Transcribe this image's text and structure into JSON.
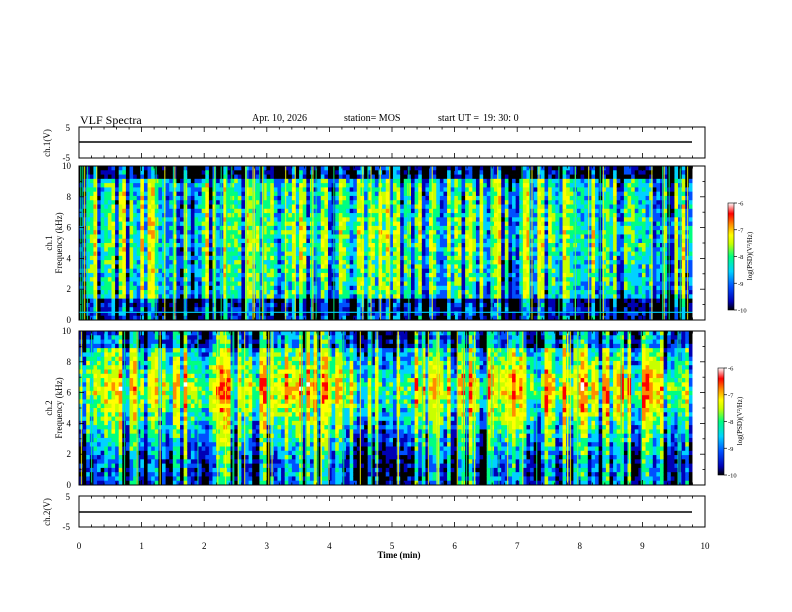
{
  "header": {
    "title": "VLF Spectra",
    "date": "Apr. 10, 2026",
    "station": "station= MOS",
    "start_label": "start UT =",
    "start_time": "19: 30: 0"
  },
  "chart_data": [
    {
      "type": "line",
      "panel": "waveform-1",
      "ylabel": "ch.1(V)",
      "ylim": [
        -5,
        5
      ],
      "yticks": [
        -5,
        5
      ],
      "xlim": [
        0,
        10
      ],
      "series": [
        {
          "values_description": "",
          "x": [
            0,
            9.8
          ],
          "y": [
            0,
            0
          ]
        }
      ]
    },
    {
      "type": "heatmap",
      "panel": "spectrogram-1",
      "ylabel": "ch.1\nFrequency (kHz)",
      "ylabel_line1": "ch.1",
      "ylabel_line2": "Frequency (kHz)",
      "ylim": [
        0,
        10
      ],
      "yticks": [
        0,
        2,
        4,
        6,
        8,
        10
      ],
      "xlim": [
        0,
        10
      ],
      "data_end_min": 9.8,
      "colorbar": {
        "label": "log(PSD)(V²/Hz)",
        "range": [
          -10,
          -6
        ],
        "ticks": [
          -10,
          -9,
          -8,
          -7,
          -6
        ]
      }
    },
    {
      "type": "heatmap",
      "panel": "spectrogram-2",
      "ylabel": "ch.2\nFrequency (kHz)",
      "ylabel_line1": "ch.2",
      "ylabel_line2": "Frequency (kHz)",
      "ylim": [
        0,
        10
      ],
      "yticks": [
        0,
        2,
        4,
        6,
        8,
        10
      ],
      "xlim": [
        0,
        10
      ],
      "data_end_min": 9.8,
      "colorbar": {
        "label": "log(PSD)(V²/Hz)",
        "range": [
          -10,
          -6
        ],
        "ticks": [
          -10,
          -9,
          -8,
          -7,
          -6
        ]
      }
    },
    {
      "type": "line",
      "panel": "waveform-2",
      "ylabel": "ch.2(V)",
      "ylim": [
        -5,
        5
      ],
      "yticks": [
        -5,
        5
      ],
      "xlim": [
        0,
        10
      ],
      "series": [
        {
          "x": [
            0,
            9.8
          ],
          "y": [
            0,
            0
          ]
        }
      ]
    }
  ],
  "x_axis": {
    "label": "Time (min)",
    "ticks": [
      0,
      1,
      2,
      3,
      4,
      5,
      6,
      7,
      8,
      9,
      10
    ]
  },
  "colors": {
    "colormap": [
      "#000000",
      "#0000b4",
      "#0050ff",
      "#00d2ff",
      "#00ff80",
      "#c8ff00",
      "#ffff00",
      "#ff8c00",
      "#ff0000",
      "#ffffff"
    ]
  }
}
